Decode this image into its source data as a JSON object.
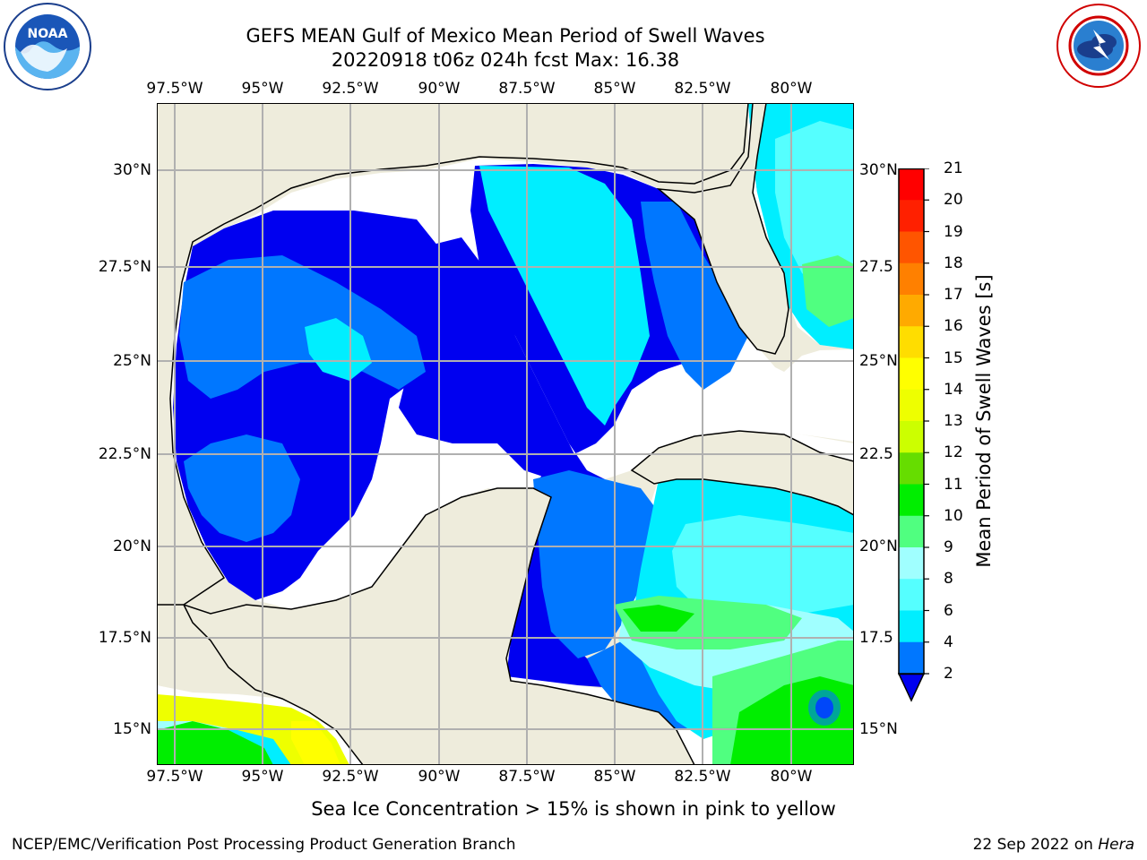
{
  "header": {
    "title_line1": "GEFS MEAN Gulf of Mexico Mean Period of Swell Waves",
    "title_line2": "20220918 t06z 024h fcst   Max: 16.38"
  },
  "map": {
    "lon_labels": [
      "97.5°W",
      "95°W",
      "92.5°W",
      "90°W",
      "87.5°W",
      "85°W",
      "82.5°W",
      "80°W"
    ],
    "lat_labels_left": [
      "30°N",
      "27.5°N",
      "25°N",
      "22.5°N",
      "20°N",
      "17.5°N",
      "15°N"
    ],
    "lat_labels_right": [
      "30°N",
      "27.5",
      "25°N",
      "22.5",
      "20°N",
      "17.5",
      "15°N"
    ],
    "max_value": 16.38,
    "colors": {
      "land": "#eeecdc",
      "no_data": "#ffffff",
      "grid": "#b0b0b0",
      "coast": "#000000"
    }
  },
  "colorbar": {
    "label": "Mean Period of Swell Waves [s]",
    "ticks": [
      "2",
      "4",
      "6",
      "8",
      "9",
      "10",
      "11",
      "12",
      "13",
      "14",
      "15",
      "16",
      "17",
      "18",
      "19",
      "20",
      "21"
    ],
    "levels": [
      2,
      4,
      6,
      8,
      9,
      10,
      11,
      12,
      13,
      14,
      15,
      16,
      17,
      18,
      19,
      20,
      21
    ],
    "colors": [
      "#0000f0",
      "#0077ff",
      "#00eeff",
      "#55ffff",
      "#a0ffff",
      "#50ff80",
      "#00ee00",
      "#66dd00",
      "#ccff00",
      "#eeff00",
      "#ffff00",
      "#ffdd00",
      "#ffaa00",
      "#ff8000",
      "#ff5500",
      "#ff2000",
      "#ff0000"
    ],
    "under_color": "#0000f0"
  },
  "caption": "Sea Ice Concentration > 15% is shown in pink to yellow",
  "footer": {
    "left": "NCEP/EMC/Verification Post Processing Product Generation Branch",
    "right_date": "22 Sep 2022 on ",
    "right_host": "Hera"
  },
  "logos": {
    "noaa_icon": "noaa-logo-icon",
    "nws_icon": "nws-logo-icon"
  }
}
